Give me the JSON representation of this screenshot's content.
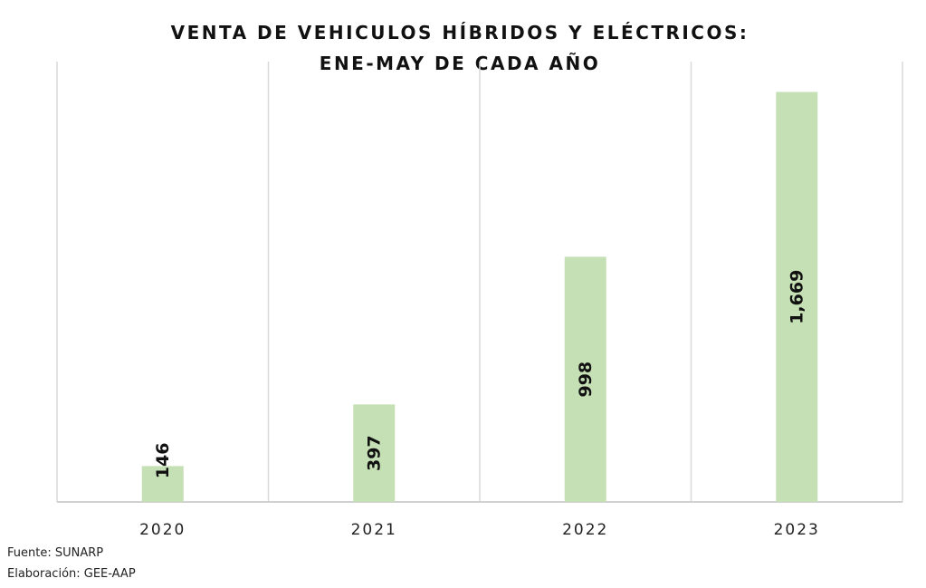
{
  "chart_data": {
    "type": "bar",
    "title_lines": [
      "VENTA DE VEHICULOS HÍBRIDOS Y ELÉCTRICOS:",
      "ENE-MAY DE CADA AÑO"
    ],
    "categories": [
      "2020",
      "2021",
      "2022",
      "2023"
    ],
    "values": [
      146,
      397,
      998,
      1669
    ],
    "data_labels": [
      "146",
      "397",
      "998",
      "1,669"
    ],
    "xlabel": "",
    "ylabel": "",
    "ylim": [
      0,
      1900
    ],
    "grid": "vertical separators",
    "legend": "none",
    "bar_color": "#c5e0b4"
  },
  "footer": {
    "source": "Fuente: SUNARP",
    "elaboration": "Elaboración: GEE-AAP"
  }
}
